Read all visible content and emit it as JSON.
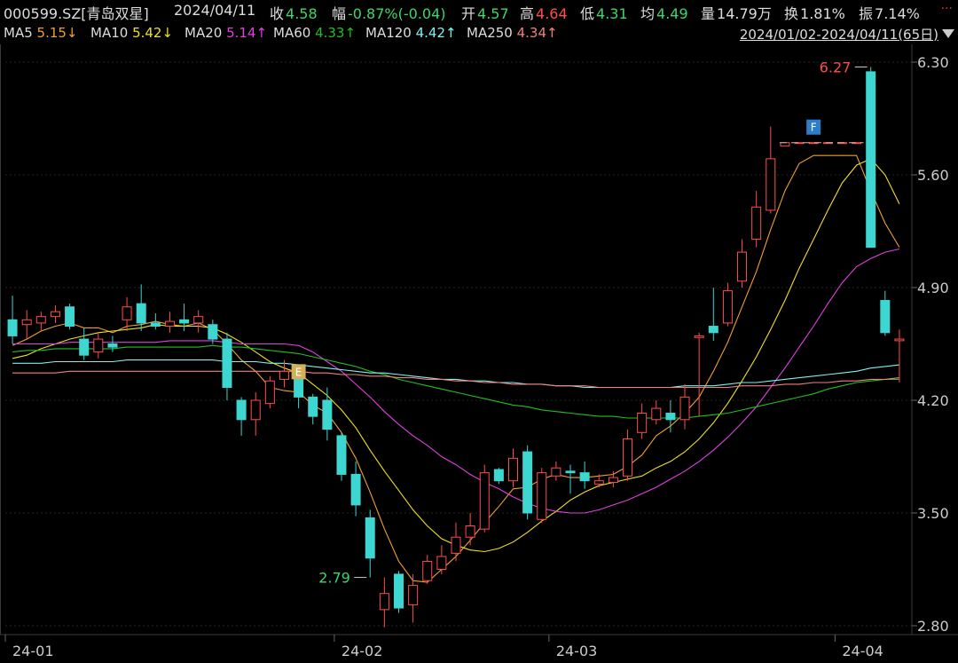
{
  "quote": {
    "code_name": "000599.SZ[青岛双星]",
    "date": "2024/04/11",
    "close_label": "收",
    "close": "4.58",
    "change_label": "幅",
    "change": "-0.87%(-0.04)",
    "open_label": "开",
    "open": "4.57",
    "high_label": "高",
    "high": "4.64",
    "low_label": "低",
    "low": "4.31",
    "avg_label": "均",
    "avg": "4.49",
    "volume_label": "量",
    "volume": "14.79万",
    "turnover_label": "换",
    "turnover": "1.81%",
    "amplitude_label": "振",
    "amplitude": "7.14%",
    "more": "..."
  },
  "ma_legend": [
    {
      "name": "MA5",
      "value": "5.15↓",
      "color": "#f0a030"
    },
    {
      "name": "MA10",
      "value": "5.42↓",
      "color": "#f0e020"
    },
    {
      "name": "MA20",
      "value": "5.14↑",
      "color": "#e040e0"
    },
    {
      "name": "MA60",
      "value": "4.33↑",
      "color": "#20c020"
    },
    {
      "name": "MA120",
      "value": "4.42↑",
      "color": "#80f0f0"
    },
    {
      "name": "MA250",
      "value": "4.34↑",
      "color": "#f08080"
    }
  ],
  "date_range": "2024/01/02-2024/04/11(65日)",
  "colors": {
    "up": "#ff4d4d",
    "down": "#3dd6d0",
    "background": "#000000",
    "grid": "#262626",
    "axis_text": "#cccccc",
    "marker_e": "#d4b05a",
    "marker_f": "#2a7fc8"
  },
  "chart_data": {
    "type": "candlestick",
    "ylim": [
      2.7,
      6.4
    ],
    "yticks": [
      "6.30",
      "5.60",
      "4.90",
      "4.20",
      "3.50",
      "2.80"
    ],
    "xticks": [
      {
        "label": "24-01",
        "index": 0
      },
      {
        "label": "24-02",
        "index": 23
      },
      {
        "label": "24-03",
        "index": 38
      },
      {
        "label": "24-04",
        "index": 58
      }
    ],
    "annotations": {
      "max_label": "6.27",
      "max_index": 60,
      "min_label": "2.79",
      "min_index": 25,
      "marker_e": "E",
      "marker_e_index": 20,
      "marker_f": "F",
      "marker_f_index": 56
    },
    "candles": [
      [
        4.7,
        4.6,
        4.85,
        4.55
      ],
      [
        4.67,
        4.7,
        4.76,
        4.58
      ],
      [
        4.68,
        4.72,
        4.75,
        4.63
      ],
      [
        4.72,
        4.75,
        4.79,
        4.68
      ],
      [
        4.78,
        4.66,
        4.8,
        4.64
      ],
      [
        4.58,
        4.48,
        4.65,
        4.45
      ],
      [
        4.5,
        4.58,
        4.62,
        4.46
      ],
      [
        4.55,
        4.53,
        4.6,
        4.5
      ],
      [
        4.7,
        4.78,
        4.84,
        4.63
      ],
      [
        4.8,
        4.68,
        4.92,
        4.63
      ],
      [
        4.68,
        4.66,
        4.74,
        4.64
      ],
      [
        4.66,
        4.69,
        4.75,
        4.62
      ],
      [
        4.7,
        4.68,
        4.8,
        4.63
      ],
      [
        4.68,
        4.72,
        4.76,
        4.62
      ],
      [
        4.67,
        4.58,
        4.7,
        4.55
      ],
      [
        4.58,
        4.28,
        4.62,
        4.2
      ],
      [
        4.2,
        4.08,
        4.22,
        3.98
      ],
      [
        4.08,
        4.2,
        4.25,
        3.98
      ],
      [
        4.18,
        4.32,
        4.35,
        4.15
      ],
      [
        4.33,
        4.38,
        4.45,
        4.28
      ],
      [
        4.38,
        4.22,
        4.42,
        4.15
      ],
      [
        4.22,
        4.1,
        4.24,
        4.05
      ],
      [
        4.2,
        4.02,
        4.28,
        3.95
      ],
      [
        3.98,
        3.74,
        4.0,
        3.7
      ],
      [
        3.74,
        3.55,
        3.82,
        3.48
      ],
      [
        3.47,
        3.22,
        3.52,
        3.1
      ],
      [
        2.9,
        3.0,
        3.1,
        2.79
      ],
      [
        3.12,
        2.91,
        3.14,
        2.88
      ],
      [
        2.93,
        3.05,
        3.12,
        2.82
      ],
      [
        3.08,
        3.2,
        3.24,
        3.06
      ],
      [
        3.15,
        3.23,
        3.3,
        3.12
      ],
      [
        3.25,
        3.35,
        3.44,
        3.2
      ],
      [
        3.35,
        3.42,
        3.5,
        3.3
      ],
      [
        3.4,
        3.75,
        3.8,
        3.38
      ],
      [
        3.77,
        3.7,
        3.78,
        3.68
      ],
      [
        3.7,
        3.84,
        3.9,
        3.66
      ],
      [
        3.88,
        3.5,
        3.92,
        3.46
      ],
      [
        3.46,
        3.75,
        3.78,
        3.44
      ],
      [
        3.73,
        3.78,
        3.82,
        3.7
      ],
      [
        3.76,
        3.75,
        3.8,
        3.62
      ],
      [
        3.75,
        3.7,
        3.82,
        3.65
      ],
      [
        3.68,
        3.7,
        3.74,
        3.66
      ],
      [
        3.69,
        3.72,
        3.76,
        3.66
      ],
      [
        3.73,
        3.96,
        4.02,
        3.7
      ],
      [
        4.0,
        4.12,
        4.18,
        3.96
      ],
      [
        4.08,
        4.15,
        4.2,
        4.05
      ],
      [
        4.12,
        4.08,
        4.2,
        4.0
      ],
      [
        4.08,
        4.22,
        4.3,
        4.02
      ],
      [
        4.59,
        4.6,
        4.62,
        4.1
      ],
      [
        4.66,
        4.62,
        4.9,
        4.57
      ],
      [
        4.68,
        4.88,
        4.93,
        4.66
      ],
      [
        4.94,
        5.12,
        5.2,
        4.9
      ],
      [
        5.2,
        5.4,
        5.5,
        5.15
      ],
      [
        5.38,
        5.7,
        5.9,
        5.36
      ],
      [
        5.78,
        5.8,
        5.8,
        5.78
      ],
      [
        5.8,
        5.8,
        5.8,
        5.8
      ],
      [
        5.8,
        5.8,
        5.8,
        5.8
      ],
      [
        5.8,
        5.8,
        5.8,
        5.8
      ],
      [
        5.8,
        5.8,
        5.8,
        5.8
      ],
      [
        5.8,
        5.8,
        5.8,
        5.8
      ],
      [
        6.24,
        5.15,
        6.27,
        5.15
      ],
      [
        4.82,
        4.62,
        4.88,
        4.6
      ],
      [
        4.57,
        4.58,
        4.64,
        4.31
      ]
    ],
    "series": [
      {
        "name": "MA5",
        "color": "#f0a030",
        "values": [
          4.54,
          4.58,
          4.63,
          4.66,
          4.68,
          4.65,
          4.65,
          4.62,
          4.66,
          4.67,
          4.69,
          4.67,
          4.66,
          4.68,
          4.64,
          4.55,
          4.45,
          4.38,
          4.28,
          4.26,
          4.25,
          4.17,
          4.12,
          4.0,
          3.84,
          3.63,
          3.4,
          3.2,
          3.08,
          3.07,
          3.15,
          3.23,
          3.33,
          3.44,
          3.54,
          3.65,
          3.66,
          3.71,
          3.74,
          3.72,
          3.72,
          3.73,
          3.74,
          3.79,
          3.86,
          3.98,
          4.04,
          4.12,
          4.22,
          4.38,
          4.56,
          4.78,
          5.0,
          5.26,
          5.5,
          5.67,
          5.72,
          5.72,
          5.72,
          5.72,
          5.5,
          5.3,
          5.15
        ]
      },
      {
        "name": "MA10",
        "color": "#f0e020",
        "values": [
          4.46,
          4.48,
          4.52,
          4.55,
          4.58,
          4.6,
          4.62,
          4.63,
          4.64,
          4.65,
          4.67,
          4.66,
          4.66,
          4.66,
          4.65,
          4.61,
          4.56,
          4.5,
          4.44,
          4.4,
          4.37,
          4.3,
          4.23,
          4.14,
          4.03,
          3.89,
          3.76,
          3.64,
          3.52,
          3.42,
          3.34,
          3.3,
          3.27,
          3.26,
          3.28,
          3.32,
          3.38,
          3.45,
          3.51,
          3.58,
          3.63,
          3.67,
          3.69,
          3.71,
          3.73,
          3.78,
          3.82,
          3.88,
          3.96,
          4.06,
          4.18,
          4.32,
          4.47,
          4.64,
          4.82,
          5.02,
          5.2,
          5.38,
          5.55,
          5.66,
          5.7,
          5.6,
          5.42
        ]
      },
      {
        "name": "MA20",
        "color": "#e040e0",
        "values": [
          4.55,
          4.55,
          4.55,
          4.55,
          4.56,
          4.56,
          4.56,
          4.56,
          4.56,
          4.56,
          4.56,
          4.57,
          4.57,
          4.57,
          4.57,
          4.56,
          4.55,
          4.55,
          4.55,
          4.55,
          4.54,
          4.5,
          4.44,
          4.38,
          4.3,
          4.22,
          4.13,
          4.05,
          3.98,
          3.92,
          3.85,
          3.8,
          3.74,
          3.69,
          3.65,
          3.6,
          3.56,
          3.53,
          3.51,
          3.5,
          3.5,
          3.52,
          3.55,
          3.58,
          3.62,
          3.66,
          3.71,
          3.76,
          3.82,
          3.89,
          3.97,
          4.06,
          4.16,
          4.28,
          4.4,
          4.53,
          4.66,
          4.8,
          4.93,
          5.03,
          5.08,
          5.12,
          5.14
        ]
      },
      {
        "name": "MA60",
        "color": "#20c020",
        "values": [
          4.5,
          4.51,
          4.51,
          4.52,
          4.52,
          4.52,
          4.52,
          4.52,
          4.53,
          4.53,
          4.53,
          4.53,
          4.53,
          4.53,
          4.54,
          4.53,
          4.53,
          4.52,
          4.51,
          4.5,
          4.49,
          4.47,
          4.45,
          4.43,
          4.41,
          4.38,
          4.36,
          4.33,
          4.31,
          4.29,
          4.27,
          4.25,
          4.23,
          4.21,
          4.19,
          4.17,
          4.16,
          4.14,
          4.13,
          4.12,
          4.11,
          4.1,
          4.1,
          4.09,
          4.09,
          4.09,
          4.09,
          4.09,
          4.1,
          4.11,
          4.12,
          4.14,
          4.16,
          4.18,
          4.2,
          4.22,
          4.24,
          4.27,
          4.29,
          4.31,
          4.32,
          4.33,
          4.33
        ]
      },
      {
        "name": "MA120",
        "color": "#80f0f0",
        "values": [
          4.43,
          4.43,
          4.43,
          4.44,
          4.44,
          4.44,
          4.44,
          4.44,
          4.45,
          4.45,
          4.45,
          4.45,
          4.45,
          4.45,
          4.45,
          4.44,
          4.44,
          4.44,
          4.43,
          4.43,
          4.42,
          4.41,
          4.4,
          4.39,
          4.38,
          4.37,
          4.37,
          4.36,
          4.35,
          4.34,
          4.33,
          4.33,
          4.32,
          4.32,
          4.31,
          4.31,
          4.3,
          4.3,
          4.29,
          4.29,
          4.28,
          4.28,
          4.28,
          4.28,
          4.28,
          4.28,
          4.28,
          4.29,
          4.29,
          4.29,
          4.3,
          4.31,
          4.31,
          4.32,
          4.33,
          4.34,
          4.35,
          4.36,
          4.37,
          4.38,
          4.4,
          4.41,
          4.42
        ]
      },
      {
        "name": "MA250",
        "color": "#f08080",
        "values": [
          4.37,
          4.37,
          4.37,
          4.37,
          4.38,
          4.38,
          4.38,
          4.38,
          4.38,
          4.38,
          4.38,
          4.38,
          4.38,
          4.38,
          4.38,
          4.38,
          4.38,
          4.38,
          4.38,
          4.38,
          4.38,
          4.37,
          4.37,
          4.36,
          4.36,
          4.35,
          4.35,
          4.34,
          4.34,
          4.33,
          4.33,
          4.32,
          4.32,
          4.31,
          4.31,
          4.3,
          4.3,
          4.3,
          4.29,
          4.29,
          4.29,
          4.28,
          4.28,
          4.28,
          4.28,
          4.28,
          4.28,
          4.28,
          4.28,
          4.28,
          4.28,
          4.29,
          4.29,
          4.29,
          4.3,
          4.3,
          4.31,
          4.31,
          4.32,
          4.32,
          4.33,
          4.33,
          4.34
        ]
      }
    ]
  }
}
